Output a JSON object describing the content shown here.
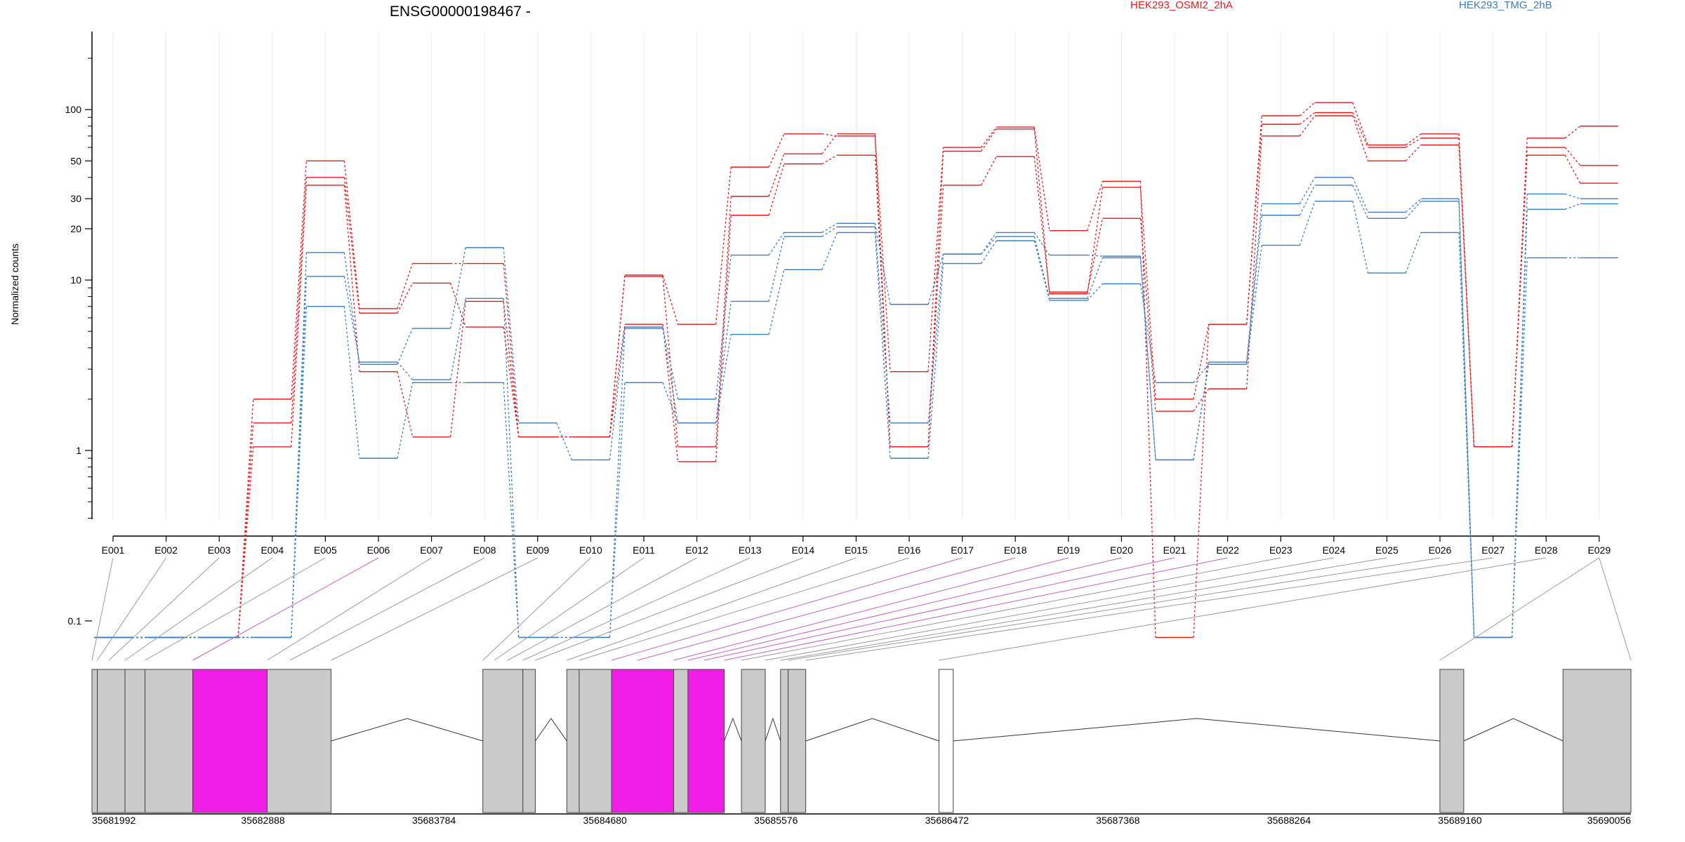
{
  "chart_data": {
    "type": "line",
    "title": "ENSG00000198467 -",
    "ylabel": "Normalized counts",
    "yscale": "log",
    "yticks": [
      "0.1",
      "1",
      "10",
      "20",
      "30",
      "50",
      "100"
    ],
    "categories": [
      "E001",
      "E002",
      "E003",
      "E004",
      "E005",
      "E006",
      "E007",
      "E008",
      "E009",
      "E010",
      "E011",
      "E012",
      "E013",
      "E014",
      "E015",
      "E016",
      "E017",
      "E018",
      "E019",
      "E020",
      "E021",
      "E022",
      "E023",
      "E024",
      "E025",
      "E026",
      "E027",
      "E028",
      "E029"
    ],
    "legend": [
      {
        "label": "HEK293_OSMI2_2hA",
        "color": "#e31a1c"
      },
      {
        "label": "HEK293_TMG_2hB",
        "color": "#3a7dc0"
      }
    ],
    "series": [
      {
        "group": "HEK293_OSMI2_2hA",
        "color": "#e31a1c",
        "values": [
          0.08,
          0.08,
          0.08,
          2.0,
          50,
          6.8,
          12.5,
          12.5,
          1.2,
          1.2,
          10.7,
          5.5,
          46,
          72,
          70,
          2.9,
          60,
          79,
          19.5,
          38,
          0.08,
          5.5,
          92,
          110,
          62,
          72,
          1.05,
          68,
          80
        ]
      },
      {
        "group": "HEK293_OSMI2_2hA",
        "color": "#e31a1c",
        "values": [
          0.08,
          0.08,
          0.08,
          1.45,
          40,
          6.4,
          9.6,
          5.3,
          1.2,
          1.2,
          10.5,
          1.05,
          31,
          55,
          72,
          1.05,
          57,
          77,
          8.3,
          35,
          2.0,
          5.5,
          82,
          96,
          60,
          68,
          1.05,
          60,
          47
        ]
      },
      {
        "group": "HEK293_OSMI2_2hA",
        "color": "#e31a1c",
        "values": [
          0.08,
          0.08,
          0.08,
          1.05,
          36,
          2.9,
          1.2,
          7.5,
          1.2,
          1.2,
          5.5,
          0.86,
          24,
          48,
          54,
          1.05,
          36,
          53,
          8.5,
          23,
          1.7,
          2.3,
          70,
          92,
          50,
          62,
          1.05,
          54,
          37
        ]
      },
      {
        "group": "HEK293_TMG_2hB",
        "color": "#3a7dc0",
        "values": [
          0.08,
          0.08,
          0.08,
          0.08,
          14.5,
          3.2,
          5.2,
          15.5,
          1.45,
          0.88,
          5.3,
          2.0,
          14,
          19,
          21.5,
          7.2,
          14.2,
          19,
          14,
          13.8,
          0.88,
          3.3,
          28,
          40,
          25,
          30,
          0.08,
          32,
          30
        ]
      },
      {
        "group": "HEK293_TMG_2hB",
        "color": "#3a7dc0",
        "values": [
          0.08,
          0.08,
          0.08,
          0.08,
          10.5,
          3.3,
          2.6,
          7.8,
          0.08,
          0.08,
          5.2,
          1.45,
          7.5,
          18,
          20.5,
          1.45,
          14.2,
          18,
          7.8,
          13.5,
          0.88,
          3.2,
          24,
          36,
          23,
          29,
          0.08,
          26,
          28
        ]
      },
      {
        "group": "HEK293_TMG_2hB",
        "color": "#3a7dc0",
        "values": [
          0.08,
          0.08,
          0.08,
          0.08,
          7.0,
          0.9,
          2.5,
          2.5,
          0.08,
          0.08,
          2.5,
          1.45,
          4.8,
          11.5,
          19,
          0.9,
          12.5,
          17,
          7.6,
          9.5,
          2.5,
          3.2,
          16,
          29,
          11,
          19,
          0.08,
          13.5,
          13.5
        ]
      }
    ],
    "genome_axis": {
      "start": 35681992,
      "end": 35690056,
      "tick_labels": [
        "35681992",
        "35682888",
        "35683784",
        "35684680",
        "35685576",
        "35686472",
        "35687368",
        "35688264",
        "35689160",
        "35690056"
      ]
    },
    "exon_track": [
      {
        "start": 35681992,
        "end": 35682020,
        "highlight": false
      },
      {
        "start": 35682020,
        "end": 35682165,
        "highlight": false
      },
      {
        "start": 35682165,
        "end": 35682270,
        "highlight": false
      },
      {
        "start": 35682270,
        "end": 35682520,
        "highlight": false
      },
      {
        "start": 35682520,
        "end": 35682910,
        "highlight": true
      },
      {
        "start": 35682910,
        "end": 35683245,
        "highlight": false
      },
      {
        "start": 35684040,
        "end": 35684250,
        "highlight": false
      },
      {
        "start": 35684250,
        "end": 35684315,
        "highlight": false
      },
      {
        "start": 35684480,
        "end": 35684545,
        "highlight": false
      },
      {
        "start": 35684545,
        "end": 35684715,
        "highlight": false
      },
      {
        "start": 35684715,
        "end": 35685040,
        "highlight": true
      },
      {
        "start": 35685040,
        "end": 35685115,
        "highlight": false
      },
      {
        "start": 35685115,
        "end": 35685305,
        "highlight": true
      },
      {
        "start": 35685395,
        "end": 35685520,
        "highlight": false
      },
      {
        "start": 35685600,
        "end": 35685640,
        "highlight": false
      },
      {
        "start": 35685640,
        "end": 35685732,
        "highlight": false
      },
      {
        "start": 35686430,
        "end": 35686505,
        "highlight": false,
        "open": true
      },
      {
        "start": 35689055,
        "end": 35689180,
        "highlight": false
      },
      {
        "start": 35689700,
        "end": 35690056,
        "highlight": false
      }
    ],
    "exon_links": [
      35681992,
      35682020,
      35682080,
      35682165,
      35682270,
      35682520,
      35682910,
      35683030,
      35683245,
      35684040,
      35684100,
      35684170,
      35684250,
      35684315,
      35684480,
      35684545,
      35684715,
      35684850,
      35685040,
      35685115,
      35685200,
      35685305,
      35685395,
      35685520,
      35685600,
      35685640,
      35685732,
      35686430,
      35689055,
      35690056
    ],
    "exon_link_highlight": [
      false,
      false,
      false,
      false,
      false,
      true,
      false,
      false,
      false,
      false,
      false,
      false,
      false,
      false,
      false,
      false,
      true,
      true,
      true,
      true,
      true,
      true,
      false,
      false,
      false,
      false,
      false,
      false,
      false,
      false
    ]
  }
}
